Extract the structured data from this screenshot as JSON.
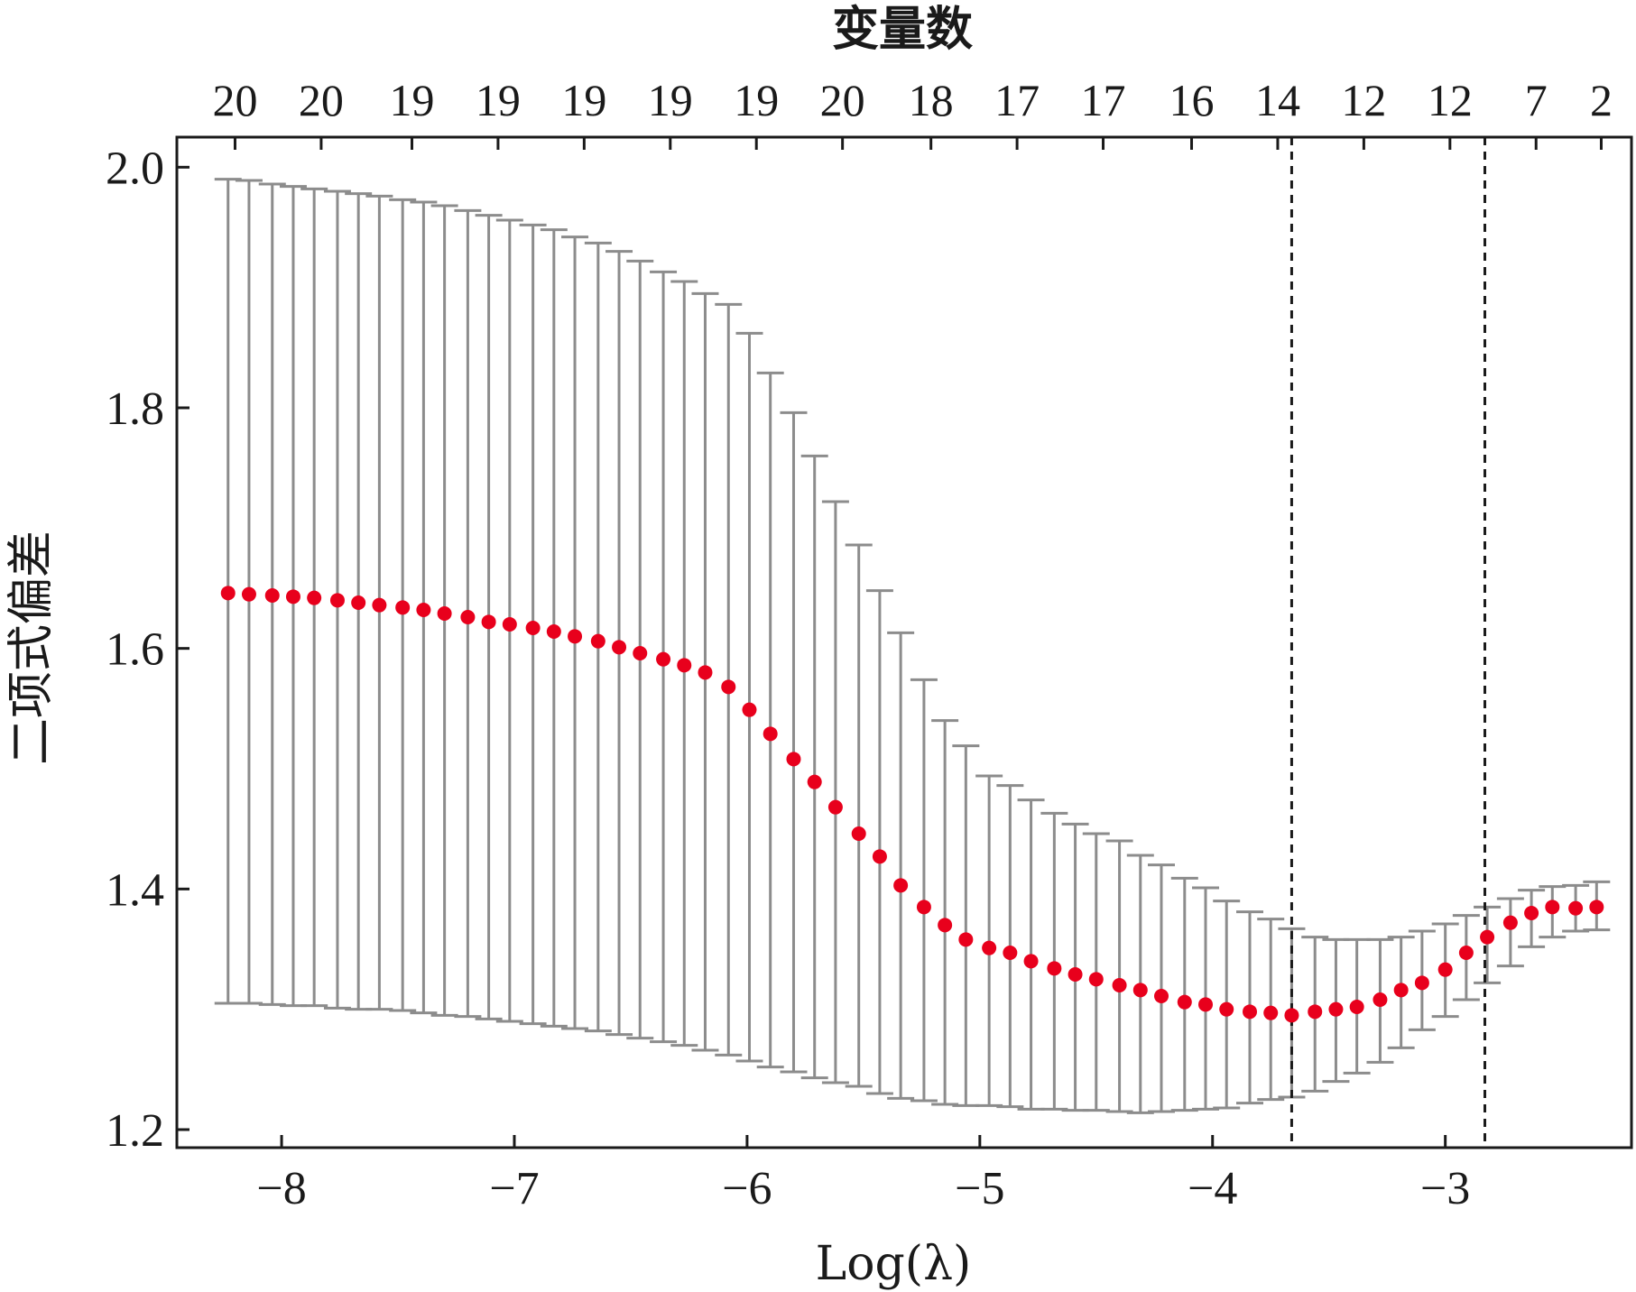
{
  "chart_data": {
    "type": "scatter",
    "top_axis_title": "变量数",
    "xlabel": "Log(λ)",
    "ylabel": "二项式偏差",
    "xlim": [
      -8.45,
      -2.2
    ],
    "ylim": [
      1.185,
      2.025
    ],
    "x_ticks": [
      -8,
      -7,
      -6,
      -5,
      -4,
      -3
    ],
    "x_tick_labels": [
      "−8",
      "−7",
      "−6",
      "−5",
      "−4",
      "−3"
    ],
    "y_ticks": [
      1.2,
      1.4,
      1.6,
      1.8,
      2.0
    ],
    "y_tick_labels": [
      "1.2",
      "1.4",
      "1.6",
      "1.8",
      "2.0"
    ],
    "top_ticks": [
      -8.2,
      -7.83,
      -7.44,
      -7.07,
      -6.7,
      -6.33,
      -5.96,
      -5.59,
      -5.21,
      -4.84,
      -4.47,
      -4.09,
      -3.72,
      -3.35,
      -2.98,
      -2.61,
      -2.33
    ],
    "top_tick_labels": [
      "20",
      "20",
      "19",
      "19",
      "19",
      "19",
      "19",
      "20",
      "18",
      "17",
      "17",
      "16",
      "14",
      "12",
      "12",
      "7",
      "2"
    ],
    "vlines": [
      -3.66,
      -2.83
    ],
    "grid": false,
    "legend": "none",
    "colors": {
      "point": "#e8001c",
      "errorbar": "#8c8c8c",
      "frame": "#1a1a1a",
      "vline": "#1a1a1a"
    },
    "x": [
      -8.23,
      -8.14,
      -8.04,
      -7.95,
      -7.86,
      -7.76,
      -7.67,
      -7.58,
      -7.48,
      -7.39,
      -7.3,
      -7.2,
      -7.11,
      -7.02,
      -6.92,
      -6.83,
      -6.74,
      -6.64,
      -6.55,
      -6.46,
      -6.36,
      -6.27,
      -6.18,
      -6.08,
      -5.99,
      -5.9,
      -5.8,
      -5.71,
      -5.62,
      -5.52,
      -5.43,
      -5.34,
      -5.24,
      -5.15,
      -5.06,
      -4.96,
      -4.87,
      -4.78,
      -4.68,
      -4.59,
      -4.5,
      -4.4,
      -4.31,
      -4.22,
      -4.12,
      -4.03,
      -3.94,
      -3.84,
      -3.75,
      -3.66,
      -3.56,
      -3.47,
      -3.38,
      -3.28,
      -3.19,
      -3.1,
      -3.0,
      -2.91,
      -2.82,
      -2.72,
      -2.63,
      -2.54,
      -2.44,
      -2.35
    ],
    "mean": [
      1.646,
      1.645,
      1.644,
      1.643,
      1.642,
      1.64,
      1.638,
      1.636,
      1.634,
      1.632,
      1.629,
      1.626,
      1.622,
      1.62,
      1.617,
      1.614,
      1.61,
      1.606,
      1.601,
      1.596,
      1.591,
      1.586,
      1.58,
      1.568,
      1.549,
      1.529,
      1.508,
      1.489,
      1.468,
      1.446,
      1.427,
      1.403,
      1.385,
      1.37,
      1.358,
      1.351,
      1.347,
      1.34,
      1.334,
      1.329,
      1.325,
      1.32,
      1.316,
      1.311,
      1.306,
      1.304,
      1.3,
      1.298,
      1.297,
      1.295,
      1.298,
      1.3,
      1.302,
      1.308,
      1.316,
      1.322,
      1.333,
      1.347,
      1.36,
      1.372,
      1.38,
      1.385,
      1.384,
      1.385
    ],
    "upper": [
      1.99,
      1.989,
      1.986,
      1.984,
      1.982,
      1.98,
      1.978,
      1.976,
      1.973,
      1.971,
      1.968,
      1.964,
      1.96,
      1.956,
      1.952,
      1.948,
      1.942,
      1.937,
      1.93,
      1.922,
      1.913,
      1.905,
      1.895,
      1.886,
      1.862,
      1.829,
      1.796,
      1.76,
      1.722,
      1.686,
      1.648,
      1.613,
      1.574,
      1.54,
      1.519,
      1.494,
      1.486,
      1.474,
      1.463,
      1.454,
      1.446,
      1.44,
      1.428,
      1.42,
      1.409,
      1.401,
      1.39,
      1.381,
      1.375,
      1.367,
      1.36,
      1.358,
      1.358,
      1.358,
      1.36,
      1.365,
      1.371,
      1.378,
      1.385,
      1.392,
      1.399,
      1.402,
      1.403,
      1.406
    ],
    "lower": [
      1.305,
      1.305,
      1.304,
      1.303,
      1.303,
      1.301,
      1.3,
      1.3,
      1.299,
      1.297,
      1.295,
      1.294,
      1.292,
      1.29,
      1.288,
      1.286,
      1.284,
      1.282,
      1.279,
      1.276,
      1.273,
      1.27,
      1.266,
      1.262,
      1.257,
      1.252,
      1.248,
      1.243,
      1.239,
      1.236,
      1.23,
      1.226,
      1.224,
      1.221,
      1.22,
      1.22,
      1.219,
      1.217,
      1.217,
      1.216,
      1.216,
      1.215,
      1.214,
      1.215,
      1.216,
      1.217,
      1.218,
      1.222,
      1.225,
      1.227,
      1.232,
      1.24,
      1.247,
      1.256,
      1.268,
      1.283,
      1.294,
      1.308,
      1.322,
      1.336,
      1.352,
      1.36,
      1.365,
      1.366
    ]
  }
}
